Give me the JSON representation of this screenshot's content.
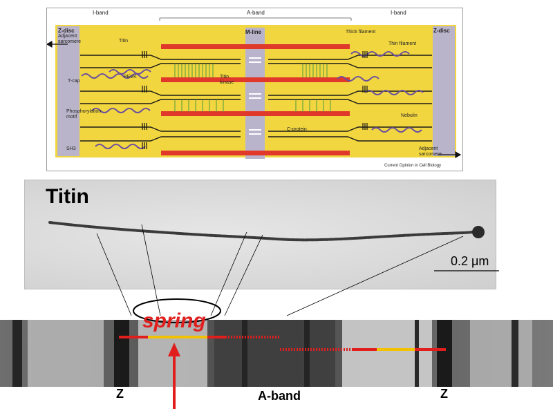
{
  "diagram": {
    "band_labels": {
      "i_band_left": "I-band",
      "a_band": "A-band",
      "i_band_right": "I-band"
    },
    "labels": {
      "z_disc_left": "Z-disc",
      "adjacent_left": "Adjacent",
      "sarcomere_left": "sarcomere",
      "z_disc_right": "Z-disc",
      "adjacent_right": "Adjacent",
      "sarcomere_right": "sarcomere",
      "m_line": "M-line",
      "titin": "Titin",
      "titin_kinase_1": "Titin",
      "titin_kinase_2": "kinase",
      "pevk": "PEVK",
      "t_cap": "T-cap",
      "phospho_1": "Phosphorylation",
      "phospho_2": "motif",
      "sh3": "SH3",
      "thick_filament": "Thick filament",
      "thin_filament": "Thin filament",
      "c_protein": "C-protein",
      "nebulin": "Nebulin",
      "credit": "Current Opinion in Cell Biology"
    },
    "colors": {
      "background": "#f2d640",
      "thick": "#e0382a",
      "thin": "#1a1a1a",
      "titin": "#6a4fa0",
      "mline": "#b9b4cc",
      "cprotein": "#4f9a3a"
    }
  },
  "micrograph": {
    "title": "Titin",
    "scale": "0.2 μm"
  },
  "strip": {
    "spring": "spring",
    "z_left": "Z",
    "z_right": "Z",
    "a_band": "A-band",
    "colors": {
      "spring_line": "#e01e1e",
      "yellow_segment": "#f2c200",
      "dashed": "#ffffff"
    }
  }
}
